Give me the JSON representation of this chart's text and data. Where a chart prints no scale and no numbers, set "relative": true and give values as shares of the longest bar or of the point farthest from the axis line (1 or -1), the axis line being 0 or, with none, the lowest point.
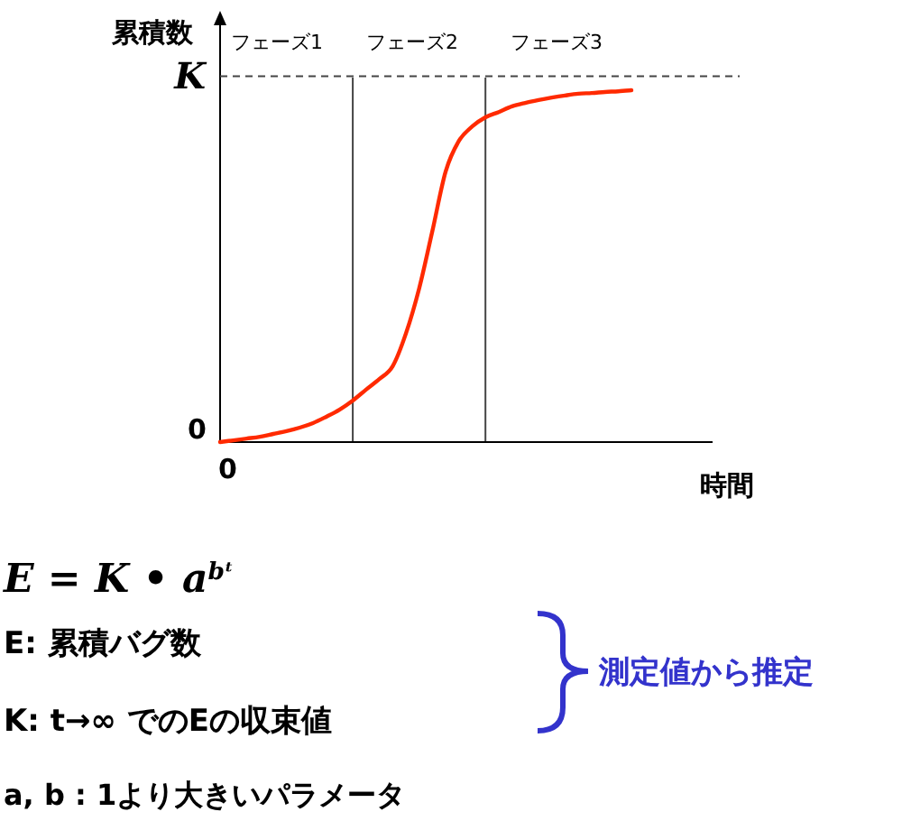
{
  "chart_data": {
    "type": "line",
    "relative": true,
    "ylabel": "累積数",
    "xlabel": "時間",
    "categories": [
      null,
      null,
      null,
      null,
      null,
      null,
      null,
      null,
      null,
      null,
      null,
      null,
      null,
      null,
      null,
      null,
      null,
      null,
      null,
      null,
      null,
      null,
      null,
      null,
      null,
      null,
      null,
      null,
      null,
      null,
      null,
      null
    ],
    "series": [
      {
        "color": "#ff2a00",
        "values": [
          0,
          0.005,
          0.01,
          0.015,
          0.023,
          0.031,
          0.041,
          0.054,
          0.072,
          0.092,
          0.118,
          0.149,
          0.179,
          0.215,
          0.308,
          0.436,
          0.6,
          0.769,
          0.856,
          0.897,
          0.923,
          0.938,
          0.954,
          0.964,
          0.972,
          0.979,
          0.985,
          0.99,
          0.992,
          0.995,
          0.997,
          1
        ]
      }
    ],
    "ref_lines": [
      {
        "axis": "y",
        "value": 1.04,
        "label": "K",
        "line_style": "dashed",
        "color": "#444444"
      }
    ],
    "annotations": [
      "0",
      "0",
      "フェーズ1",
      "フェーズ2",
      "フェーズ3",
      "E = K • a$^{bᵗ}$",
      "E:  累積バグ数",
      "K:  t→∞ でのEの収束値",
      "a, b : 1より大きいパラメータ",
      "測定値から推定"
    ]
  }
}
